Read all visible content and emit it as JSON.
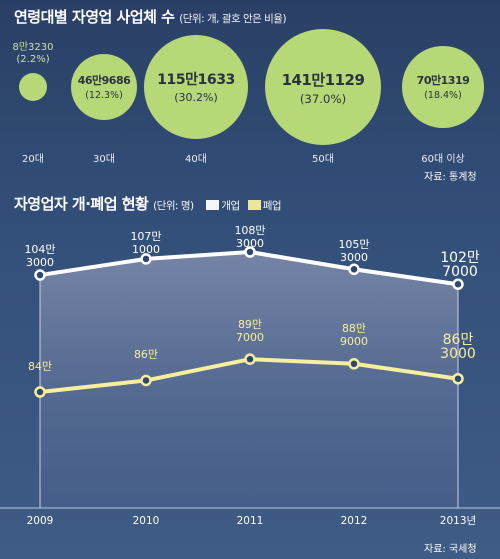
{
  "section1": {
    "title": "연령대별 자영업 사업체 수",
    "unit_note": "(단위: 개, 괄호 안은 비율)",
    "source": "자료: 통계청"
  },
  "section2": {
    "title": "자영업자 개·폐업 현황",
    "unit_note": "(단위: 명)",
    "legend_open": "개업",
    "legend_close": "폐업",
    "source": "자료: 국세청"
  },
  "colors": {
    "open": "#ffffff",
    "close": "#f7ef9b",
    "bubble": "#b7d877",
    "background": "#2f4670"
  },
  "chart_data": [
    {
      "type": "bubble",
      "title": "연령대별 자영업 사업체 수",
      "categories": [
        "20대",
        "30대",
        "40대",
        "50대",
        "60대 이상"
      ],
      "values": [
        83230,
        469686,
        1151633,
        1411129,
        701319
      ],
      "value_labels": [
        "8만3230",
        "46만9686",
        "115만1633",
        "141만1129",
        "70만1319"
      ],
      "percents": [
        2.2,
        12.3,
        30.2,
        37.0,
        18.4
      ],
      "percent_labels": [
        "(2.2%)",
        "(12.3%)",
        "(30.2%)",
        "(37.0%)",
        "(18.4%)"
      ]
    },
    {
      "type": "line",
      "title": "자영업자 개·폐업 현황",
      "x": [
        2009,
        2010,
        2011,
        2012,
        2013
      ],
      "x_labels": [
        "2009",
        "2010",
        "2011",
        "2012",
        "2013년"
      ],
      "ylim": [
        0,
        1100000
      ],
      "grid": false,
      "legend": "top-right",
      "series": [
        {
          "name": "개업",
          "values": [
            1043000,
            1071000,
            1083000,
            1053000,
            1027000
          ],
          "labels": [
            [
              "104만",
              "3000"
            ],
            [
              "107만",
              "1000"
            ],
            [
              "108만",
              "3000"
            ],
            [
              "105만",
              "3000"
            ],
            [
              "102만",
              "7000"
            ]
          ]
        },
        {
          "name": "폐업",
          "values": [
            840000,
            860000,
            897000,
            889000,
            863000
          ],
          "labels": [
            [
              "84만",
              ""
            ],
            [
              "86만",
              ""
            ],
            [
              "89만",
              "7000"
            ],
            [
              "88만",
              "9000"
            ],
            [
              "86만",
              "3000"
            ]
          ]
        }
      ]
    }
  ]
}
